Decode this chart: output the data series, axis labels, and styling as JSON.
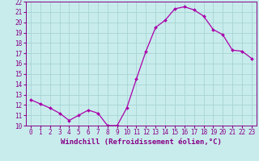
{
  "hours": [
    0,
    1,
    2,
    3,
    4,
    5,
    6,
    7,
    8,
    9,
    10,
    11,
    12,
    13,
    14,
    15,
    16,
    17,
    18,
    19,
    20,
    21,
    22,
    23
  ],
  "values": [
    12.5,
    12.1,
    11.7,
    11.2,
    10.5,
    11.0,
    11.5,
    11.2,
    10.0,
    10.0,
    11.7,
    14.5,
    17.2,
    19.5,
    20.2,
    21.3,
    21.5,
    21.2,
    20.6,
    19.3,
    18.8,
    17.3,
    17.2,
    16.5
  ],
  "line_color": "#aa00aa",
  "marker_color": "#aa00aa",
  "bg_color": "#c8ecec",
  "grid_color": "#a8d4d4",
  "xlabel": "Windchill (Refroidissement éolien,°C)",
  "ylim": [
    10,
    22
  ],
  "xlim_min": -0.5,
  "xlim_max": 23.5,
  "yticks": [
    10,
    11,
    12,
    13,
    14,
    15,
    16,
    17,
    18,
    19,
    20,
    21,
    22
  ],
  "xticks": [
    0,
    1,
    2,
    3,
    4,
    5,
    6,
    7,
    8,
    9,
    10,
    11,
    12,
    13,
    14,
    15,
    16,
    17,
    18,
    19,
    20,
    21,
    22,
    23
  ],
  "font_color": "#880088",
  "tick_fontsize": 5.5,
  "xlabel_fontsize": 6.5
}
